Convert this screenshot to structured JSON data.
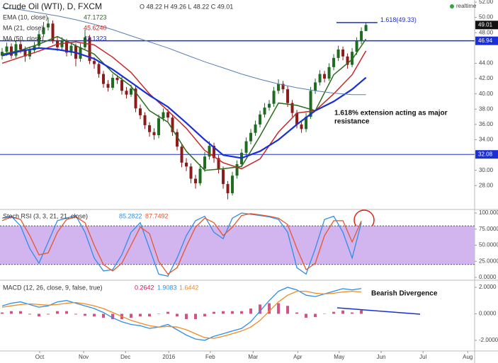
{
  "chart_data": [
    {
      "type": "candlestick",
      "title": "Crude Oil (WTI), D, FXCM",
      "ohlc_text": "O 48.22 H 49.26 L 48.22 C 49.01",
      "status": "realtime",
      "up_color": "#1f6b22",
      "down_color": "#8c1c1c",
      "candles": [
        [
          45.0,
          46.0,
          44.5,
          45.5
        ],
        [
          45.5,
          46.7,
          45.0,
          46.2
        ],
        [
          46.2,
          46.6,
          44.6,
          45.0
        ],
        [
          45.0,
          47.0,
          44.7,
          46.5
        ],
        [
          46.5,
          46.9,
          45.3,
          45.8
        ],
        [
          45.8,
          46.2,
          44.2,
          44.9
        ],
        [
          44.9,
          46.1,
          44.5,
          45.7
        ],
        [
          45.7,
          46.8,
          45.3,
          46.3
        ],
        [
          46.3,
          48.3,
          46.0,
          47.8
        ],
        [
          47.8,
          49.4,
          47.4,
          48.7
        ],
        [
          48.7,
          50.0,
          48.3,
          49.2
        ],
        [
          49.2,
          49.6,
          46.6,
          47.0
        ],
        [
          47.0,
          47.5,
          45.6,
          46.1
        ],
        [
          46.1,
          47.4,
          45.7,
          46.9
        ],
        [
          46.9,
          47.2,
          44.9,
          45.4
        ],
        [
          45.4,
          46.8,
          45.0,
          46.3
        ],
        [
          46.3,
          46.6,
          43.6,
          44.6
        ],
        [
          44.6,
          46.6,
          44.2,
          46.1
        ],
        [
          46.1,
          48.4,
          45.8,
          47.4
        ],
        [
          47.4,
          47.7,
          43.9,
          44.3
        ],
        [
          44.3,
          44.8,
          43.3,
          43.9
        ],
        [
          43.9,
          44.2,
          42.1,
          42.6
        ],
        [
          42.6,
          43.0,
          40.8,
          41.3
        ],
        [
          41.3,
          41.8,
          40.3,
          40.8
        ],
        [
          40.8,
          42.6,
          40.5,
          42.1
        ],
        [
          42.1,
          42.5,
          41.3,
          41.8
        ],
        [
          41.8,
          42.2,
          39.9,
          40.4
        ],
        [
          40.4,
          40.9,
          39.4,
          39.9
        ],
        [
          39.9,
          41.2,
          39.6,
          40.7
        ],
        [
          40.7,
          41.0,
          37.6,
          38.1
        ],
        [
          38.1,
          38.6,
          36.7,
          37.2
        ],
        [
          37.2,
          37.6,
          35.4,
          35.9
        ],
        [
          35.9,
          36.3,
          34.4,
          35.0
        ],
        [
          35.0,
          35.5,
          34.0,
          34.6
        ],
        [
          34.6,
          37.3,
          34.2,
          36.8
        ],
        [
          36.8,
          38.1,
          36.4,
          37.6
        ],
        [
          37.6,
          38.0,
          36.4,
          36.9
        ],
        [
          36.9,
          37.3,
          34.5,
          35.0
        ],
        [
          35.0,
          35.4,
          32.6,
          33.1
        ],
        [
          33.1,
          33.5,
          30.4,
          31.0
        ],
        [
          31.0,
          31.6,
          29.9,
          30.5
        ],
        [
          30.5,
          30.9,
          28.3,
          28.9
        ],
        [
          28.9,
          29.4,
          27.6,
          28.3
        ],
        [
          28.3,
          30.8,
          28.0,
          30.2
        ],
        [
          30.2,
          32.4,
          29.8,
          31.8
        ],
        [
          31.8,
          33.8,
          31.4,
          33.2
        ],
        [
          33.2,
          33.6,
          31.0,
          31.6
        ],
        [
          31.6,
          32.0,
          29.6,
          30.1
        ],
        [
          30.1,
          30.5,
          27.6,
          28.2
        ],
        [
          28.2,
          28.6,
          26.2,
          27.0
        ],
        [
          27.0,
          29.8,
          26.7,
          29.3
        ],
        [
          29.3,
          31.3,
          28.9,
          30.8
        ],
        [
          30.8,
          32.8,
          30.4,
          32.3
        ],
        [
          32.3,
          34.3,
          31.9,
          33.8
        ],
        [
          33.8,
          35.4,
          33.4,
          34.9
        ],
        [
          34.9,
          36.5,
          34.5,
          36.0
        ],
        [
          36.0,
          37.8,
          35.6,
          37.3
        ],
        [
          37.3,
          38.8,
          36.9,
          38.2
        ],
        [
          38.2,
          39.2,
          37.8,
          38.7
        ],
        [
          38.7,
          40.9,
          38.3,
          40.4
        ],
        [
          40.4,
          41.9,
          40.0,
          41.3
        ],
        [
          41.3,
          41.7,
          40.1,
          40.6
        ],
        [
          40.6,
          41.0,
          38.3,
          38.8
        ],
        [
          38.8,
          39.2,
          37.0,
          37.5
        ],
        [
          37.5,
          37.9,
          35.5,
          36.0
        ],
        [
          36.0,
          36.4,
          34.9,
          35.4
        ],
        [
          35.4,
          37.5,
          35.0,
          37.0
        ],
        [
          37.0,
          40.9,
          36.7,
          40.4
        ],
        [
          40.4,
          42.0,
          40.0,
          41.5
        ],
        [
          41.5,
          43.1,
          41.1,
          42.6
        ],
        [
          42.6,
          43.0,
          41.5,
          42.0
        ],
        [
          42.0,
          44.0,
          41.7,
          43.5
        ],
        [
          43.5,
          45.2,
          43.1,
          44.7
        ],
        [
          44.7,
          46.3,
          44.3,
          45.8
        ],
        [
          45.8,
          46.2,
          44.4,
          44.9
        ],
        [
          44.9,
          45.3,
          43.3,
          43.8
        ],
        [
          43.8,
          46.0,
          43.5,
          45.5
        ],
        [
          45.5,
          47.4,
          45.1,
          46.9
        ],
        [
          46.9,
          48.7,
          46.5,
          48.22
        ],
        [
          48.22,
          49.26,
          48.22,
          49.01
        ]
      ],
      "overlays": [
        {
          "name": "EMA (10, close)",
          "color": "#2e6b1e",
          "width": 1.5,
          "x": [
            0,
            4,
            8,
            12,
            16,
            20,
            24,
            28,
            32,
            36,
            40,
            44,
            48,
            52,
            56,
            60,
            64,
            68,
            72,
            76,
            79
          ],
          "values": [
            45.2,
            45.7,
            46.5,
            47.5,
            46.3,
            45.2,
            42.8,
            41.0,
            37.8,
            36.3,
            32.5,
            30.0,
            30.2,
            30.5,
            34.5,
            38.8,
            38.5,
            37.8,
            42.5,
            44.5,
            47.1723
          ]
        },
        {
          "name": "MA (21, close)",
          "color": "#c62828",
          "width": 1.5,
          "value_label": "45.6240",
          "x": [
            0,
            4,
            8,
            12,
            16,
            20,
            24,
            28,
            32,
            36,
            40,
            44,
            48,
            52,
            56,
            60,
            64,
            68,
            72,
            76,
            79
          ],
          "values": [
            44.0,
            44.8,
            45.6,
            46.5,
            46.8,
            46.4,
            44.8,
            42.8,
            40.0,
            37.8,
            35.5,
            32.6,
            31.0,
            30.2,
            31.5,
            35.0,
            37.5,
            37.8,
            40.0,
            42.5,
            45.624
          ]
        },
        {
          "name": "MA (50, close)",
          "color": "#1a2fd6",
          "width": 2.2,
          "x": [
            0,
            4,
            8,
            12,
            16,
            20,
            24,
            28,
            32,
            36,
            40,
            44,
            48,
            52,
            56,
            60,
            64,
            68,
            72,
            76,
            79
          ],
          "values": [
            45.0,
            45.6,
            46.0,
            45.8,
            45.4,
            44.6,
            43.2,
            41.5,
            39.8,
            38.3,
            36.2,
            34.0,
            32.0,
            31.6,
            32.5,
            34.0,
            36.0,
            37.8,
            39.0,
            40.6,
            42.1323
          ]
        },
        {
          "color": "#5b7fb0",
          "width": 1,
          "x": [
            0,
            4,
            8,
            12,
            16,
            20,
            24,
            28,
            32,
            36,
            40,
            44,
            48,
            52,
            56,
            60,
            64,
            68,
            72,
            76,
            79
          ],
          "values": [
            51.3,
            51.0,
            50.6,
            50.2,
            49.7,
            49.1,
            48.4,
            47.6,
            46.8,
            46.0,
            45.1,
            44.2,
            43.4,
            42.6,
            41.9,
            41.3,
            40.8,
            40.4,
            40.1,
            39.9,
            39.9
          ]
        }
      ],
      "levels": [
        {
          "value": 46.94,
          "label": "46.94",
          "color": "#1a2fd6",
          "width": 1.5
        },
        {
          "value": 32.08,
          "label": "32.08",
          "color": "#1a2fd6",
          "width": 1
        }
      ],
      "last_price": {
        "value": 49.01,
        "label": "49.01",
        "color": "#111"
      },
      "extension": {
        "value": 49.33,
        "label": "1.618(49.33)",
        "x": [
          72.6,
          81.5
        ],
        "color": "#1a2fd6"
      },
      "annotation": [
        "1.618% extension acting as major",
        "resistance"
      ],
      "xlim": [
        -0.46,
        102.6
      ],
      "xticks": [
        {
          "value": 8.15,
          "label": "Oct"
        },
        {
          "value": 17.7,
          "label": "Nov"
        },
        {
          "value": 26.8,
          "label": "Dec"
        },
        {
          "value": 36.2,
          "label": "2016"
        },
        {
          "value": 45.2,
          "label": "Feb"
        },
        {
          "value": 54.5,
          "label": "Mar"
        },
        {
          "value": 64.2,
          "label": "Apr"
        },
        {
          "value": 73.2,
          "label": "May"
        },
        {
          "value": 82.3,
          "label": "Jun"
        },
        {
          "value": 91.4,
          "label": "Jul"
        },
        {
          "value": 101.1,
          "label": "Aug"
        }
      ],
      "ylim": [
        24.97,
        52.28
      ],
      "yticks": [
        {
          "value": 52,
          "label": "52.00"
        },
        {
          "value": 50,
          "label": "50.00"
        },
        {
          "value": 48,
          "label": "48.00"
        },
        {
          "value": 44,
          "label": "44.00"
        },
        {
          "value": 42,
          "label": "42.00"
        },
        {
          "value": 40,
          "label": "40.00"
        },
        {
          "value": 38,
          "label": "38.00"
        },
        {
          "value": 36,
          "label": "36.00"
        },
        {
          "value": 34,
          "label": "34.00"
        },
        {
          "value": 30,
          "label": "30.00"
        },
        {
          "value": 28,
          "label": "28.00"
        }
      ]
    },
    {
      "type": "line",
      "title": "Stoch RSI (3, 3, 21, 21, close)",
      "band": [
        20,
        80
      ],
      "band_color": "#d2b4ee",
      "x": [
        0,
        2,
        4,
        6,
        8,
        10,
        12,
        14,
        16,
        18,
        20,
        22,
        24,
        26,
        28,
        30,
        32,
        34,
        36,
        38,
        40,
        42,
        44,
        46,
        48,
        50,
        52,
        54,
        56,
        58,
        60,
        62,
        64,
        66,
        68,
        70,
        72,
        74,
        76,
        78
      ],
      "series": [
        {
          "color": "#2f8ee8",
          "values": [
            92,
            95,
            80,
            45,
            22,
            55,
            88,
            92,
            96,
            70,
            30,
            10,
            12,
            35,
            70,
            85,
            45,
            5,
            2,
            30,
            65,
            88,
            95,
            70,
            60,
            92,
            100,
            98,
            96,
            94,
            90,
            70,
            15,
            5,
            45,
            90,
            95,
            70,
            30,
            85.2822
          ]
        },
        {
          "color": "#e4572e",
          "values": [
            88,
            94,
            90,
            65,
            35,
            38,
            70,
            90,
            94,
            85,
            50,
            20,
            10,
            22,
            50,
            78,
            68,
            25,
            5,
            15,
            48,
            78,
            92,
            85,
            65,
            78,
            96,
            99,
            97,
            95,
            92,
            82,
            45,
            12,
            22,
            65,
            88,
            88,
            55,
            87.7492
          ]
        }
      ],
      "ylim": [
        -3.3,
        104.4
      ],
      "yticks": [
        {
          "value": 100,
          "label": "100.0000"
        },
        {
          "value": 75,
          "label": "75.0000"
        },
        {
          "value": 50,
          "label": "50.0000"
        },
        {
          "value": 25,
          "label": "25.0000"
        },
        {
          "value": 0,
          "label": "0.0000"
        }
      ]
    },
    {
      "type": "macd",
      "title": "MACD (12, 26, close, 9, false, true)",
      "annotation": "Bearish Divergence",
      "x": [
        0,
        2,
        4,
        6,
        8,
        10,
        12,
        14,
        16,
        18,
        20,
        22,
        24,
        26,
        28,
        30,
        32,
        34,
        36,
        38,
        40,
        42,
        44,
        46,
        48,
        50,
        52,
        54,
        56,
        58,
        60,
        62,
        64,
        66,
        68,
        70,
        72,
        74,
        76,
        78
      ],
      "histogram": {
        "color": "#c2185b",
        "values": [
          0.1,
          0.2,
          0.2,
          -0.05,
          -0.2,
          -0.05,
          0.2,
          0.2,
          -0.05,
          -0.15,
          -0.2,
          -0.3,
          -0.4,
          -0.4,
          -0.3,
          -0.2,
          -0.2,
          0,
          0.15,
          -0.2,
          -0.4,
          -0.4,
          -0.2,
          0.15,
          0.2,
          0.2,
          0.2,
          0.4,
          0.7,
          0.8,
          0.8,
          0.6,
          0.1,
          -0.3,
          -0.25,
          0,
          0.15,
          0.25,
          0.1,
          0.2642
        ]
      },
      "series": [
        {
          "color": "#2f8ee8",
          "values": [
            0.6,
            0.8,
            0.9,
            0.7,
            0.5,
            0.6,
            0.9,
            1.0,
            0.8,
            0.6,
            0.4,
            0.1,
            -0.3,
            -0.6,
            -0.8,
            -0.9,
            -1.1,
            -1.0,
            -0.8,
            -1.2,
            -1.6,
            -1.9,
            -2.0,
            -1.7,
            -1.5,
            -1.3,
            -1.1,
            -0.6,
            0.2,
            1.0,
            1.7,
            2.0,
            1.8,
            1.4,
            1.3,
            1.5,
            1.7,
            1.9,
            1.8,
            1.9083
          ]
        },
        {
          "color": "#f08a24",
          "values": [
            0.5,
            0.6,
            0.7,
            0.75,
            0.7,
            0.65,
            0.7,
            0.8,
            0.85,
            0.75,
            0.6,
            0.4,
            0.1,
            -0.2,
            -0.5,
            -0.7,
            -0.9,
            -1.0,
            -0.95,
            -1.0,
            -1.2,
            -1.5,
            -1.8,
            -1.85,
            -1.7,
            -1.5,
            -1.3,
            -1.0,
            -0.5,
            0.2,
            0.9,
            1.4,
            1.7,
            1.7,
            1.55,
            1.5,
            1.55,
            1.65,
            1.7,
            1.6442
          ]
        }
      ],
      "ylim": [
        -2.75,
        2.48
      ],
      "yticks": [
        {
          "value": 2,
          "label": "2.0000"
        },
        {
          "value": 0,
          "label": "0.0000"
        },
        {
          "value": -2,
          "label": "-2.0000"
        }
      ]
    }
  ]
}
